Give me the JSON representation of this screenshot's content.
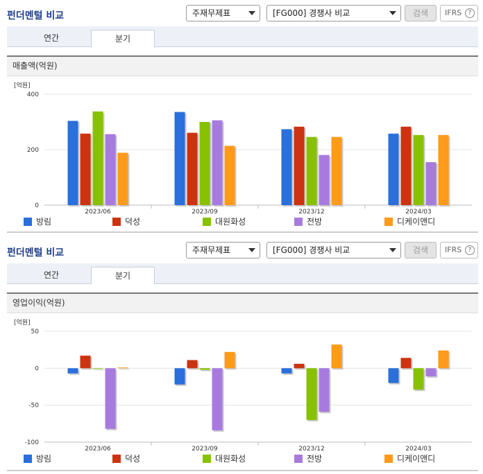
{
  "panels": [
    {
      "title": "펀더멘털 비교",
      "select1": "주재무제표",
      "select2": "[FG000] 경쟁사 비교",
      "search_label": "검색",
      "ifrs_label": "IFRS",
      "help_label": "?",
      "tabs": [
        {
          "label": "연간"
        },
        {
          "label": "분기"
        }
      ],
      "active_tab": 1,
      "metric": "매출액(억원)",
      "unit": "[억원]"
    },
    {
      "title": "펀더멘털 비교",
      "select1": "주재무제표",
      "select2": "[FG000] 경쟁사 비교",
      "search_label": "검색",
      "ifrs_label": "IFRS",
      "help_label": "?",
      "tabs": [
        {
          "label": "연간"
        },
        {
          "label": "분기"
        }
      ],
      "active_tab": 1,
      "metric": "영업이익(억원)",
      "unit": "[억원]"
    }
  ],
  "chart_data": [
    {
      "type": "bar",
      "title": "매출액(억원)",
      "ylabel": "[억원]",
      "categories": [
        "2023/06",
        "2023/09",
        "2023/12",
        "2024/03"
      ],
      "ylim": [
        0,
        400
      ],
      "yticks": [
        0,
        200,
        400
      ],
      "series": [
        {
          "name": "방림",
          "color": "#2a6fdb",
          "values": [
            304,
            336,
            274,
            258
          ]
        },
        {
          "name": "덕성",
          "color": "#cc3311",
          "values": [
            258,
            261,
            283,
            283
          ]
        },
        {
          "name": "대원화성",
          "color": "#88c100",
          "values": [
            338,
            300,
            246,
            253
          ]
        },
        {
          "name": "전방",
          "color": "#a77bde",
          "values": [
            256,
            306,
            181,
            155
          ]
        },
        {
          "name": "디케이앤디",
          "color": "#ff9a1a",
          "values": [
            189,
            214,
            246,
            253
          ]
        }
      ]
    },
    {
      "type": "bar",
      "title": "영업이익(억원)",
      "ylabel": "[억원]",
      "categories": [
        "2023/06",
        "2023/09",
        "2023/12",
        "2024/03"
      ],
      "ylim": [
        -100,
        50
      ],
      "yticks": [
        -100,
        -50,
        0,
        50
      ],
      "series": [
        {
          "name": "방림",
          "color": "#2a6fdb",
          "values": [
            -7,
            -22,
            -7,
            -20
          ]
        },
        {
          "name": "덕성",
          "color": "#cc3311",
          "values": [
            17,
            11,
            6,
            14
          ]
        },
        {
          "name": "대원화성",
          "color": "#88c100",
          "values": [
            0,
            -2,
            -70,
            -29
          ]
        },
        {
          "name": "전방",
          "color": "#a77bde",
          "values": [
            -82,
            -84,
            -59,
            -11
          ]
        },
        {
          "name": "디케이앤디",
          "color": "#ff9a1a",
          "values": [
            1,
            22,
            32,
            24
          ]
        }
      ]
    }
  ]
}
